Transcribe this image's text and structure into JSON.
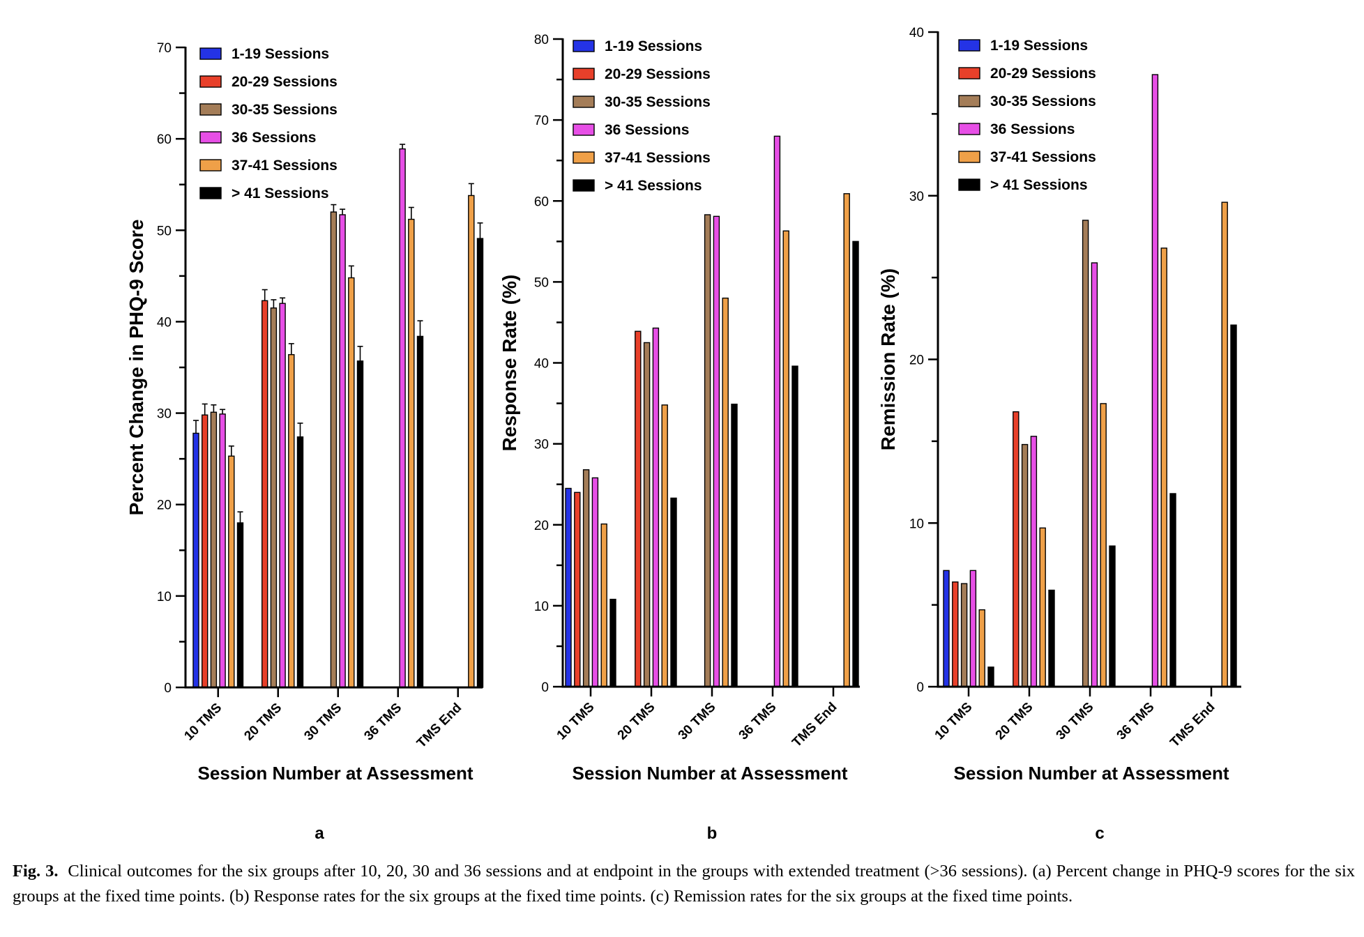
{
  "figure_caption": {
    "label": "Fig. 3.",
    "text": "Clinical outcomes for the six groups after 10, 20, 30 and 36 sessions and at endpoint in the groups with extended treatment (>36 sessions). (a) Percent change in PHQ-9 scores for the six groups at the fixed time points. (b) Response rates for the six groups at the fixed time points. (c) Remission rates for the six groups at the fixed time points."
  },
  "colors": {
    "1-19 Sessions": "#2433e6",
    "20-29 Sessions": "#e8402a",
    "30-35 Sessions": "#a47d58",
    "36 Sessions": "#e74fe6",
    "37-41 Sessions": "#efa048",
    "> 41 Sessions": "#000000"
  },
  "chart_data": [
    {
      "panel_label": "a",
      "type": "bar",
      "title": "",
      "xlabel": "Session Number at Assessment",
      "ylabel": "Percent Change in PHQ-9 Score",
      "ylim": [
        0,
        70
      ],
      "yticks": [
        0,
        10,
        20,
        30,
        40,
        50,
        60,
        70
      ],
      "minor_step": 5,
      "error_bars": true,
      "legend_position": "top-left",
      "categories": [
        "10 TMS",
        "20 TMS",
        "30 TMS",
        "36 TMS",
        "TMS End"
      ],
      "series": [
        {
          "name": "1-19 Sessions",
          "values": [
            27.8,
            null,
            null,
            null,
            null
          ],
          "errors": [
            1.4,
            null,
            null,
            null,
            null
          ]
        },
        {
          "name": "20-29 Sessions",
          "values": [
            29.8,
            42.3,
            null,
            null,
            null
          ],
          "errors": [
            1.2,
            1.2,
            null,
            null,
            null
          ]
        },
        {
          "name": "30-35 Sessions",
          "values": [
            30.1,
            41.5,
            52.0,
            null,
            null
          ],
          "errors": [
            0.8,
            0.9,
            0.8,
            null,
            null
          ]
        },
        {
          "name": "36 Sessions",
          "values": [
            29.9,
            42.0,
            51.7,
            58.9,
            null
          ],
          "errors": [
            0.5,
            0.6,
            0.6,
            0.5,
            null
          ]
        },
        {
          "name": "37-41 Sessions",
          "values": [
            25.3,
            36.4,
            44.8,
            51.2,
            53.8
          ],
          "errors": [
            1.1,
            1.2,
            1.3,
            1.3,
            1.3
          ]
        },
        {
          "name": "> 41 Sessions",
          "values": [
            18.0,
            27.4,
            35.7,
            38.4,
            49.1
          ],
          "errors": [
            1.2,
            1.5,
            1.6,
            1.7,
            1.7
          ]
        }
      ]
    },
    {
      "panel_label": "b",
      "type": "bar",
      "title": "",
      "xlabel": "Session Number at Assessment",
      "ylabel": "Response Rate (%)",
      "ylim": [
        0,
        80
      ],
      "yticks": [
        0,
        10,
        20,
        30,
        40,
        50,
        60,
        70,
        80
      ],
      "minor_step": 5,
      "error_bars": false,
      "legend_position": "top-left",
      "categories": [
        "10 TMS",
        "20 TMS",
        "30 TMS",
        "36 TMS",
        "TMS End"
      ],
      "series": [
        {
          "name": "1-19 Sessions",
          "values": [
            24.5,
            null,
            null,
            null,
            null
          ]
        },
        {
          "name": "20-29 Sessions",
          "values": [
            24.0,
            43.9,
            null,
            null,
            null
          ]
        },
        {
          "name": "30-35 Sessions",
          "values": [
            26.8,
            42.5,
            58.3,
            null,
            null
          ]
        },
        {
          "name": "36 Sessions",
          "values": [
            25.8,
            44.3,
            58.1,
            68.0,
            null
          ]
        },
        {
          "name": "37-41 Sessions",
          "values": [
            20.1,
            34.8,
            48.0,
            56.3,
            60.9
          ]
        },
        {
          "name": "> 41 Sessions",
          "values": [
            10.8,
            23.3,
            34.9,
            39.6,
            55.0
          ]
        }
      ]
    },
    {
      "panel_label": "c",
      "type": "bar",
      "title": "",
      "xlabel": "Session Number at Assessment",
      "ylabel": "Remission Rate (%)",
      "ylim": [
        0,
        40
      ],
      "yticks": [
        0,
        10,
        20,
        30,
        40
      ],
      "minor_step": 5,
      "error_bars": false,
      "legend_position": "top-left",
      "categories": [
        "10 TMS",
        "20 TMS",
        "30 TMS",
        "36 TMS",
        "TMS End"
      ],
      "series": [
        {
          "name": "1-19 Sessions",
          "values": [
            7.1,
            null,
            null,
            null,
            null
          ]
        },
        {
          "name": "20-29 Sessions",
          "values": [
            6.4,
            16.8,
            null,
            null,
            null
          ]
        },
        {
          "name": "30-35 Sessions",
          "values": [
            6.3,
            14.8,
            28.5,
            null,
            null
          ]
        },
        {
          "name": "36 Sessions",
          "values": [
            7.1,
            15.3,
            25.9,
            37.4,
            null
          ]
        },
        {
          "name": "37-41 Sessions",
          "values": [
            4.7,
            9.7,
            17.3,
            26.8,
            29.6
          ]
        },
        {
          "name": "> 41 Sessions",
          "values": [
            1.2,
            5.9,
            8.6,
            11.8,
            22.1
          ]
        }
      ]
    }
  ]
}
